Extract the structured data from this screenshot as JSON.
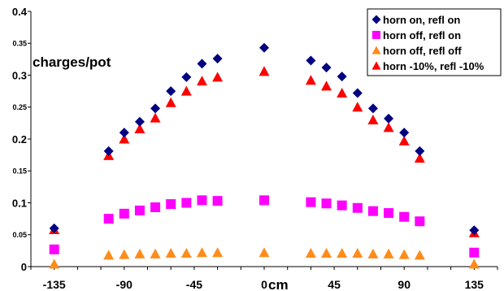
{
  "chart_data": {
    "type": "scatter",
    "ylabel": "charges/pot",
    "xlabel": "cm",
    "xlim": [
      -150,
      150
    ],
    "ylim": [
      0,
      0.4
    ],
    "x_ticks": [
      -135,
      -90,
      -45,
      0,
      45,
      90,
      135
    ],
    "y_ticks": [
      0,
      0.05,
      0.1,
      0.15,
      0.2,
      0.25,
      0.3,
      0.35,
      0.4
    ],
    "y_tick_labels": [
      "0",
      "0.05",
      "0.1",
      "0.15",
      "0.2",
      "0.25",
      "0.3",
      "0.35",
      "0.4"
    ],
    "legend_position": "top-right",
    "grid": false,
    "series": [
      {
        "name": "horn on, refl on",
        "marker": "diamond",
        "color": "#000080",
        "x": [
          -135,
          -100,
          -90,
          -80,
          -70,
          -60,
          -50,
          -40,
          -30,
          0,
          30,
          40,
          50,
          60,
          70,
          80,
          90,
          100,
          135
        ],
        "y": [
          0.06,
          0.181,
          0.21,
          0.227,
          0.248,
          0.275,
          0.297,
          0.318,
          0.326,
          0.343,
          0.323,
          0.312,
          0.298,
          0.272,
          0.248,
          0.232,
          0.21,
          0.181,
          0.057
        ]
      },
      {
        "name": "horn off, refl on",
        "marker": "square",
        "color": "#ff00ff",
        "x": [
          -135,
          -100,
          -90,
          -80,
          -70,
          -60,
          -50,
          -40,
          -30,
          0,
          30,
          40,
          50,
          60,
          70,
          80,
          90,
          100,
          135
        ],
        "y": [
          0.027,
          0.075,
          0.083,
          0.088,
          0.093,
          0.098,
          0.1,
          0.104,
          0.103,
          0.104,
          0.101,
          0.099,
          0.096,
          0.092,
          0.087,
          0.084,
          0.078,
          0.071,
          0.022
        ]
      },
      {
        "name": "horn off, refl off",
        "marker": "triangle",
        "color": "#ff8c1a",
        "x": [
          -135,
          -100,
          -90,
          -80,
          -70,
          -60,
          -50,
          -40,
          -30,
          0,
          30,
          40,
          50,
          60,
          70,
          80,
          90,
          100,
          135
        ],
        "y": [
          0.004,
          0.018,
          0.019,
          0.02,
          0.02,
          0.021,
          0.021,
          0.022,
          0.022,
          0.022,
          0.021,
          0.021,
          0.021,
          0.021,
          0.02,
          0.02,
          0.019,
          0.018,
          0.004
        ]
      },
      {
        "name": "horn -10%, refl -10%",
        "marker": "triangle",
        "color": "#ff0000",
        "x": [
          -135,
          -100,
          -90,
          -80,
          -70,
          -60,
          -50,
          -40,
          -30,
          0,
          30,
          40,
          50,
          60,
          70,
          80,
          90,
          100,
          135
        ],
        "y": [
          0.058,
          0.174,
          0.2,
          0.216,
          0.233,
          0.257,
          0.275,
          0.291,
          0.297,
          0.306,
          0.292,
          0.283,
          0.272,
          0.25,
          0.23,
          0.218,
          0.197,
          0.17,
          0.053
        ]
      }
    ]
  }
}
